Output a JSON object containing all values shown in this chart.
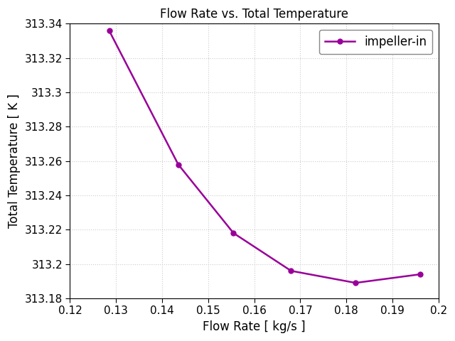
{
  "title": "Flow Rate vs. Total Temperature",
  "xlabel": "Flow Rate [ kg/s ]",
  "ylabel": "Total Temperature [ K ]",
  "x": [
    0.1285,
    0.1435,
    0.1555,
    0.168,
    0.182,
    0.196
  ],
  "y": [
    313.336,
    313.258,
    313.218,
    313.196,
    313.189,
    313.194
  ],
  "line_color": "#990099",
  "marker": "o",
  "markersize": 5,
  "linewidth": 1.8,
  "legend_label": "impeller-in",
  "xlim": [
    0.12,
    0.2
  ],
  "ylim": [
    313.18,
    313.34
  ],
  "xticks": [
    0.12,
    0.13,
    0.14,
    0.15,
    0.16,
    0.17,
    0.18,
    0.19,
    0.2
  ],
  "yticks": [
    313.18,
    313.2,
    313.22,
    313.24,
    313.26,
    313.28,
    313.3,
    313.32,
    313.34
  ],
  "ytick_labels": [
    "313.18",
    "313.2",
    "313.22",
    "313.24",
    "313.26",
    "313.28",
    "313.3",
    "313.32",
    "313.34"
  ],
  "xtick_labels": [
    "0.12",
    "0.13",
    "0.14",
    "0.15",
    "0.16",
    "0.17",
    "0.18",
    "0.19",
    "0.2"
  ],
  "grid": true,
  "grid_color": "#cccccc",
  "grid_style": "dotted",
  "background_color": "#ffffff",
  "title_fontsize": 12,
  "label_fontsize": 12,
  "tick_fontsize": 11,
  "legend_fontsize": 12
}
